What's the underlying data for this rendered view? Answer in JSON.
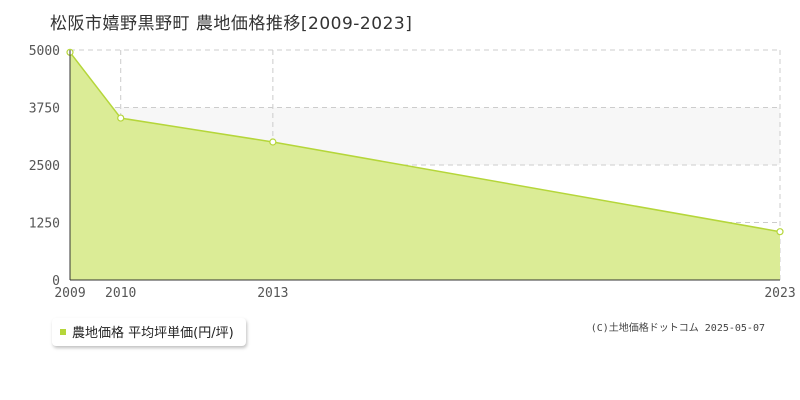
{
  "title": "松阪市嬉野黒野町 農地価格推移[2009-2023]",
  "legend_label": "農地価格 平均坪単価(円/坪)",
  "copyright": "(C)土地価格ドットコム 2025-05-07",
  "colors": {
    "fill": "#dbec96",
    "line": "#b5d63a",
    "grid": "#cccccc",
    "axis": "#333333",
    "band": "#f7f7f7"
  },
  "chart_data": {
    "type": "area",
    "title": "松阪市嬉野黒野町 農地価格推移[2009-2023]",
    "xlabel": "",
    "ylabel": "",
    "x": [
      2009,
      2010,
      2013,
      2023
    ],
    "x_ticks": [
      "2009",
      "2010",
      "2013",
      "2023"
    ],
    "y_ticks": [
      "0",
      "1250",
      "2500",
      "3750",
      "5000"
    ],
    "ylim": [
      0,
      5000
    ],
    "grid": true,
    "legend_position": "bottom-left",
    "series": [
      {
        "name": "農地価格 平均坪単価(円/坪)",
        "values": [
          4950,
          3520,
          3000,
          1050
        ]
      }
    ]
  }
}
